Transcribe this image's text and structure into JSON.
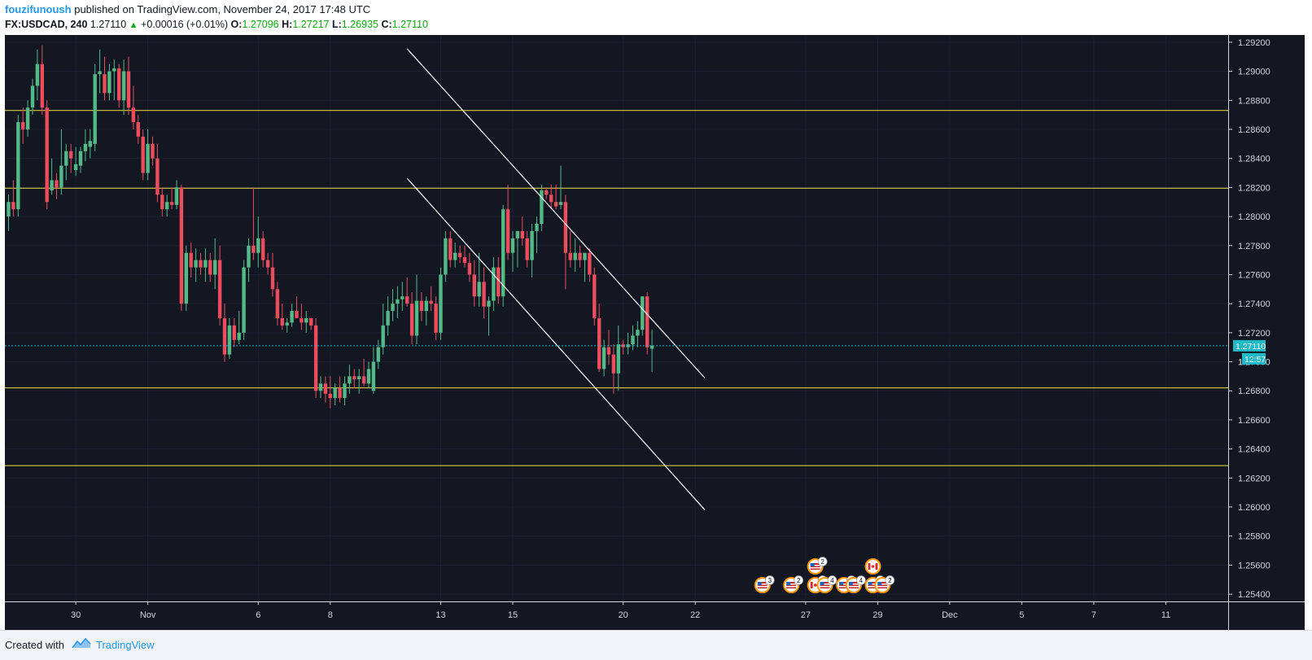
{
  "header": {
    "author": "fouzifunoush",
    "published_text": "published on TradingView.com, November 24, 2017 17:48 UTC"
  },
  "symbol": {
    "name": "FX:USDCAD, 240",
    "last": "1.27110",
    "change": "+0.00016 (+0.01%)",
    "o_label": "O:",
    "o_value": "1.27096",
    "h_label": "H:",
    "h_value": "1.27217",
    "l_label": "L:",
    "l_value": "1.26935",
    "c_label": "C:",
    "c_value": "1.27110"
  },
  "footer": {
    "created_with": "Created with",
    "brand": "TradingView"
  },
  "colors": {
    "background": "#131722",
    "up": "#53b987",
    "down": "#eb4d5c",
    "level_line": "#f0e040",
    "trend_line": "#ffffff",
    "price_line": "#21b9c8"
  },
  "chart_data": {
    "type": "candlestick",
    "ylim": [
      1.2535,
      1.2925
    ],
    "y_ticks": [
      "1.29200",
      "1.29000",
      "1.28800",
      "1.28600",
      "1.28400",
      "1.28200",
      "1.28000",
      "1.27800",
      "1.27600",
      "1.27400",
      "1.27200",
      "1.27000",
      "1.26800",
      "1.26600",
      "1.26400",
      "1.26200",
      "1.26000",
      "1.25800",
      "1.25600",
      "1.25400"
    ],
    "x_ticks": [
      {
        "label": "30",
        "i": 14
      },
      {
        "label": "Nov",
        "i": 29
      },
      {
        "label": "6",
        "i": 52
      },
      {
        "label": "8",
        "i": 67
      },
      {
        "label": "13",
        "i": 90
      },
      {
        "label": "15",
        "i": 105
      },
      {
        "label": "20",
        "i": 128
      },
      {
        "label": "22",
        "i": 143
      },
      {
        "label": "27",
        "i": 166
      },
      {
        "label": "29",
        "i": 181
      },
      {
        "label": "Dec",
        "i": 196
      },
      {
        "label": "5",
        "i": 211
      },
      {
        "label": "7",
        "i": 226
      },
      {
        "label": "11",
        "i": 241
      }
    ],
    "bars": [
      [
        1.28,
        1.2815,
        1.279,
        1.281
      ],
      [
        1.281,
        1.2825,
        1.28,
        1.2805
      ],
      [
        1.2805,
        1.287,
        1.28,
        1.2865
      ],
      [
        1.2865,
        1.2875,
        1.285,
        1.286
      ],
      [
        1.286,
        1.288,
        1.2855,
        1.2875
      ],
      [
        1.2875,
        1.2895,
        1.287,
        1.289
      ],
      [
        1.289,
        1.2915,
        1.288,
        1.2905
      ],
      [
        1.2905,
        1.2918,
        1.287,
        1.2875
      ],
      [
        1.2875,
        1.288,
        1.2805,
        1.281
      ],
      [
        1.2818,
        1.284,
        1.2815,
        1.2825
      ],
      [
        1.2825,
        1.283,
        1.2812,
        1.282
      ],
      [
        1.282,
        1.286,
        1.2815,
        1.2835
      ],
      [
        1.2835,
        1.285,
        1.2825,
        1.2845
      ],
      [
        1.2845,
        1.285,
        1.283,
        1.284
      ],
      [
        1.2832,
        1.2848,
        1.2828,
        1.2836
      ],
      [
        1.2835,
        1.2848,
        1.283,
        1.2845
      ],
      [
        1.2845,
        1.286,
        1.2838,
        1.285
      ],
      [
        1.2848,
        1.286,
        1.284,
        1.2852
      ],
      [
        1.285,
        1.2905,
        1.2845,
        1.2898
      ],
      [
        1.2898,
        1.2915,
        1.2885,
        1.29
      ],
      [
        1.2898,
        1.291,
        1.288,
        1.2885
      ],
      [
        1.2885,
        1.2905,
        1.288,
        1.29
      ],
      [
        1.29,
        1.2908,
        1.288,
        1.2902
      ],
      [
        1.2902,
        1.2905,
        1.2875,
        1.288
      ],
      [
        1.288,
        1.2908,
        1.287,
        1.29
      ],
      [
        1.29,
        1.291,
        1.287,
        1.2875
      ],
      [
        1.2875,
        1.289,
        1.286,
        1.2865
      ],
      [
        1.2865,
        1.287,
        1.285,
        1.2855
      ],
      [
        1.2855,
        1.286,
        1.2825,
        1.283
      ],
      [
        1.283,
        1.286,
        1.2825,
        1.285
      ],
      [
        1.285,
        1.2855,
        1.2835,
        1.284
      ],
      [
        1.284,
        1.285,
        1.281,
        1.2815
      ],
      [
        1.2815,
        1.282,
        1.28,
        1.2805
      ],
      [
        1.2805,
        1.2815,
        1.28,
        1.281
      ],
      [
        1.281,
        1.282,
        1.2805,
        1.2808
      ],
      [
        1.2808,
        1.2825,
        1.2805,
        1.282
      ],
      [
        1.282,
        1.2822,
        1.2735,
        1.274
      ],
      [
        1.274,
        1.278,
        1.2735,
        1.2775
      ],
      [
        1.2775,
        1.2782,
        1.2758,
        1.2765
      ],
      [
        1.2765,
        1.2778,
        1.2755,
        1.277
      ],
      [
        1.277,
        1.2775,
        1.276,
        1.2765
      ],
      [
        1.2765,
        1.2778,
        1.2755,
        1.277
      ],
      [
        1.277,
        1.2775,
        1.2755,
        1.276
      ],
      [
        1.276,
        1.2785,
        1.275,
        1.277
      ],
      [
        1.277,
        1.278,
        1.2725,
        1.273
      ],
      [
        1.273,
        1.274,
        1.27,
        1.2705
      ],
      [
        1.2705,
        1.273,
        1.2702,
        1.2725
      ],
      [
        1.2725,
        1.273,
        1.271,
        1.2715
      ],
      [
        1.2715,
        1.2735,
        1.2712,
        1.272
      ],
      [
        1.272,
        1.277,
        1.2715,
        1.2765
      ],
      [
        1.2765,
        1.2785,
        1.2755,
        1.278
      ],
      [
        1.278,
        1.282,
        1.277,
        1.2775
      ],
      [
        1.2775,
        1.28,
        1.2765,
        1.2785
      ],
      [
        1.2785,
        1.279,
        1.2765,
        1.277
      ],
      [
        1.277,
        1.2775,
        1.276,
        1.2765
      ],
      [
        1.2765,
        1.2775,
        1.2745,
        1.275
      ],
      [
        1.275,
        1.2755,
        1.2725,
        1.273
      ],
      [
        1.273,
        1.274,
        1.2722,
        1.2725
      ],
      [
        1.2725,
        1.273,
        1.272,
        1.2727
      ],
      [
        1.2727,
        1.274,
        1.2724,
        1.2735
      ],
      [
        1.2735,
        1.2745,
        1.273,
        1.273
      ],
      [
        1.273,
        1.274,
        1.2722,
        1.2727
      ],
      [
        1.2727,
        1.2735,
        1.272,
        1.273
      ],
      [
        1.273,
        1.273,
        1.2722,
        1.2725
      ],
      [
        1.2725,
        1.273,
        1.2675,
        1.268
      ],
      [
        1.268,
        1.269,
        1.2675,
        1.2685
      ],
      [
        1.2685,
        1.269,
        1.2672,
        1.2678
      ],
      [
        1.2678,
        1.269,
        1.2668,
        1.2675
      ],
      [
        1.2675,
        1.2685,
        1.267,
        1.2682
      ],
      [
        1.2682,
        1.269,
        1.2672,
        1.2675
      ],
      [
        1.2675,
        1.269,
        1.267,
        1.2685
      ],
      [
        1.2685,
        1.2698,
        1.2678,
        1.269
      ],
      [
        1.269,
        1.2695,
        1.2682,
        1.2688
      ],
      [
        1.2688,
        1.2695,
        1.2678,
        1.269
      ],
      [
        1.269,
        1.2702,
        1.2683,
        1.2685
      ],
      [
        1.2685,
        1.27,
        1.2682,
        1.2695
      ],
      [
        1.268,
        1.271,
        1.2678,
        1.27
      ],
      [
        1.27,
        1.2715,
        1.2695,
        1.271
      ],
      [
        1.271,
        1.274,
        1.2705,
        1.2725
      ],
      [
        1.2725,
        1.2745,
        1.2718,
        1.2735
      ],
      [
        1.2735,
        1.275,
        1.2728,
        1.274
      ],
      [
        1.274,
        1.2752,
        1.273,
        1.2743
      ],
      [
        1.2743,
        1.2755,
        1.2735,
        1.2745
      ],
      [
        1.2745,
        1.2758,
        1.2738,
        1.274
      ],
      [
        1.274,
        1.2748,
        1.2712,
        1.2718
      ],
      [
        1.2718,
        1.276,
        1.2712,
        1.2742
      ],
      [
        1.2742,
        1.2748,
        1.2728,
        1.2735
      ],
      [
        1.2735,
        1.2745,
        1.2725,
        1.2742
      ],
      [
        1.2742,
        1.2752,
        1.2735,
        1.274
      ],
      [
        1.274,
        1.2745,
        1.2715,
        1.272
      ],
      [
        1.272,
        1.2765,
        1.2715,
        1.276
      ],
      [
        1.276,
        1.279,
        1.2755,
        1.2785
      ],
      [
        1.2785,
        1.279,
        1.2765,
        1.277
      ],
      [
        1.277,
        1.2782,
        1.2765,
        1.2775
      ],
      [
        1.2775,
        1.278,
        1.2768,
        1.2772
      ],
      [
        1.2772,
        1.278,
        1.2765,
        1.2768
      ],
      [
        1.2768,
        1.2775,
        1.2755,
        1.276
      ],
      [
        1.276,
        1.277,
        1.2738,
        1.2745
      ],
      [
        1.2745,
        1.2775,
        1.2738,
        1.2755
      ],
      [
        1.2755,
        1.2765,
        1.273,
        1.2738
      ],
      [
        1.2738,
        1.2745,
        1.2718,
        1.2742
      ],
      [
        1.2742,
        1.2772,
        1.2735,
        1.2765
      ],
      [
        1.2765,
        1.2772,
        1.274,
        1.2745
      ],
      [
        1.2745,
        1.2808,
        1.2738,
        1.2805
      ],
      [
        1.2805,
        1.2822,
        1.277,
        1.2775
      ],
      [
        1.2775,
        1.279,
        1.2762,
        1.2785
      ],
      [
        1.2785,
        1.279,
        1.2765,
        1.279
      ],
      [
        1.279,
        1.28,
        1.278,
        1.2785
      ],
      [
        1.2785,
        1.279,
        1.2765,
        1.277
      ],
      [
        1.277,
        1.2795,
        1.2758,
        1.279
      ],
      [
        1.279,
        1.28,
        1.2775,
        1.2795
      ],
      [
        1.2795,
        1.2822,
        1.279,
        1.2818
      ],
      [
        1.2818,
        1.282,
        1.2812,
        1.2815
      ],
      [
        1.2815,
        1.2822,
        1.2805,
        1.281
      ],
      [
        1.281,
        1.2822,
        1.2805,
        1.2807
      ],
      [
        1.2808,
        1.2835,
        1.2805,
        1.281
      ],
      [
        1.281,
        1.2815,
        1.275,
        1.2775
      ],
      [
        1.2775,
        1.279,
        1.2765,
        1.277
      ],
      [
        1.277,
        1.2785,
        1.2762,
        1.2775
      ],
      [
        1.2775,
        1.278,
        1.2765,
        1.277
      ],
      [
        1.277,
        1.2775,
        1.2755,
        1.2775
      ],
      [
        1.2775,
        1.2778,
        1.2755,
        1.276
      ],
      [
        1.276,
        1.2765,
        1.2725,
        1.273
      ],
      [
        1.273,
        1.274,
        1.2693,
        1.2695
      ],
      [
        1.2695,
        1.2715,
        1.269,
        1.271
      ],
      [
        1.271,
        1.2722,
        1.2698,
        1.2705
      ],
      [
        1.2705,
        1.2712,
        1.2678,
        1.2692
      ],
      [
        1.2692,
        1.2725,
        1.268,
        1.2712
      ],
      [
        1.2712,
        1.2715,
        1.2705,
        1.271
      ],
      [
        1.271,
        1.272,
        1.2705,
        1.2712
      ],
      [
        1.2712,
        1.2725,
        1.2708,
        1.2718
      ],
      [
        1.2718,
        1.2728,
        1.271,
        1.2722
      ],
      [
        1.2722,
        1.2745,
        1.2718,
        1.2745
      ],
      [
        1.2745,
        1.2748,
        1.2705,
        1.271
      ],
      [
        1.2709,
        1.2722,
        1.2693,
        1.2711
      ]
    ],
    "levels": [
      1.2873,
      1.28195,
      1.2682,
      1.26285
    ],
    "trendlines": [
      {
        "i1": 83,
        "p1": 1.29155,
        "i2": 145,
        "p2": 1.26888
      },
      {
        "i1": 83,
        "p1": 1.28263,
        "i2": 145,
        "p2": 1.2598
      }
    ],
    "price_label": "1.27110",
    "countdown_label": "12:57",
    "partial_tick_label": "1.",
    "events": [
      {
        "i": 157,
        "row": 0,
        "flag": "us",
        "badge": "3"
      },
      {
        "i": 163,
        "row": 0,
        "flag": "us",
        "badge": "2"
      },
      {
        "i": 168,
        "row": 1,
        "flag": "us",
        "badge": "2"
      },
      {
        "i": 168,
        "row": 0,
        "flag": "ca",
        "badge": "2"
      },
      {
        "i": 170,
        "row": 0,
        "flag": "us",
        "badge": "4"
      },
      {
        "i": 174,
        "row": 0,
        "flag": "us",
        "badge": "2"
      },
      {
        "i": 176,
        "row": 0,
        "flag": "us",
        "badge": "4"
      },
      {
        "i": 180,
        "row": 1,
        "flag": "ca",
        "badge": ""
      },
      {
        "i": 180,
        "row": 0,
        "flag": "us",
        "badge": "5"
      },
      {
        "i": 182,
        "row": 0,
        "flag": "us",
        "badge": "2"
      }
    ]
  }
}
